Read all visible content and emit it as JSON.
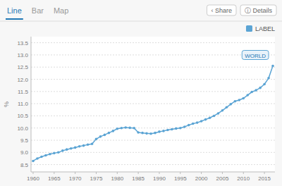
{
  "chart_data": {
    "type": "line",
    "tabs": [
      "Line",
      "Bar",
      "Map"
    ],
    "buttons": [
      "‹ Share",
      "ⓘ Details"
    ],
    "y_label": "%",
    "x": [
      1960,
      1961,
      1962,
      1963,
      1964,
      1965,
      1966,
      1967,
      1968,
      1969,
      1970,
      1971,
      1972,
      1973,
      1974,
      1975,
      1976,
      1977,
      1978,
      1979,
      1980,
      1981,
      1982,
      1983,
      1984,
      1985,
      1986,
      1987,
      1988,
      1989,
      1990,
      1991,
      1992,
      1993,
      1994,
      1995,
      1996,
      1997,
      1998,
      1999,
      2000,
      2001,
      2002,
      2003,
      2004,
      2005,
      2006,
      2007,
      2008,
      2009,
      2010,
      2011,
      2012,
      2013,
      2014,
      2015,
      2016,
      2017
    ],
    "series": [
      {
        "name": "LABEL",
        "color": "#5ba4d4",
        "marker": "circle",
        "values": [
          8.65,
          8.75,
          8.82,
          8.88,
          8.93,
          8.97,
          9.0,
          9.07,
          9.12,
          9.16,
          9.2,
          9.25,
          9.28,
          9.32,
          9.35,
          9.55,
          9.65,
          9.72,
          9.8,
          9.88,
          9.97,
          10.0,
          10.02,
          10.01,
          10.0,
          9.82,
          9.8,
          9.78,
          9.77,
          9.8,
          9.85,
          9.88,
          9.92,
          9.95,
          9.98,
          10.0,
          10.05,
          10.12,
          10.18,
          10.22,
          10.28,
          10.35,
          10.42,
          10.5,
          10.6,
          10.72,
          10.85,
          10.98,
          11.1,
          11.15,
          11.22,
          11.35,
          11.48,
          11.55,
          11.65,
          11.8,
          12.05,
          12.55
        ]
      }
    ],
    "annotations": [
      {
        "text": "WORLD",
        "x": 2017,
        "y": 12.55
      }
    ],
    "xlim": [
      1959.5,
      2017.5
    ],
    "ylim": [
      8.2,
      13.75
    ],
    "xticks": [
      1960,
      1965,
      1970,
      1975,
      1980,
      1985,
      1990,
      1995,
      2000,
      2005,
      2010,
      2015
    ],
    "yticks": [
      8.5,
      {
        "value": 9,
        "label": "9.0"
      },
      9.5,
      {
        "value": 10,
        "label": "10.0"
      },
      10.5,
      {
        "value": 11,
        "label": "11.0"
      },
      11.5,
      {
        "value": 12,
        "label": "12.0"
      },
      12.5,
      {
        "value": 13,
        "label": "13.0"
      },
      13.5
    ],
    "grid": true,
    "legend": "top right"
  }
}
